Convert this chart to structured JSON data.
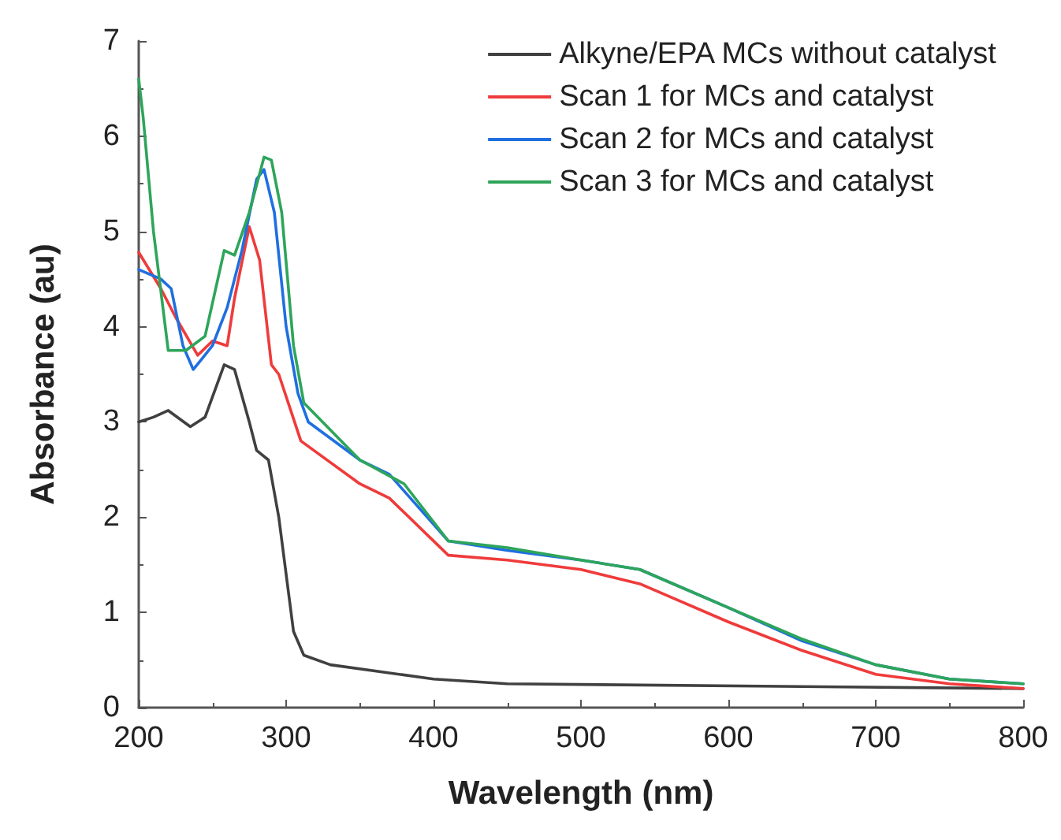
{
  "chart_data": {
    "type": "line",
    "xlabel": "Wavelength (nm)",
    "ylabel": "Absorbance (au)",
    "xlim": [
      200,
      800
    ],
    "xticks": [
      200,
      300,
      400,
      500,
      600,
      700,
      800
    ],
    "ylim": [
      0,
      7
    ],
    "yticks": [
      0,
      1,
      2,
      3,
      4,
      5,
      6,
      7
    ],
    "legend": "top right",
    "grid": false,
    "marker": "none",
    "line_style": "solid",
    "series": [
      {
        "name": "Alkyne/EPA MCs without catalyst",
        "color": "#404040",
        "x": [
          200,
          210,
          220,
          235,
          245,
          258,
          265,
          275,
          280,
          288,
          295,
          305,
          312,
          330,
          400,
          450,
          800
        ],
        "values": [
          3.0,
          3.05,
          3.12,
          2.95,
          3.05,
          3.6,
          3.55,
          3.0,
          2.7,
          2.6,
          2.0,
          0.8,
          0.55,
          0.45,
          0.3,
          0.25,
          0.2
        ]
      },
      {
        "name": "Scan 1 for MCs and catalyst",
        "color": "#ef3b3b",
        "x": [
          200,
          215,
          225,
          240,
          250,
          260,
          265,
          275,
          282,
          290,
          295,
          310,
          350,
          370,
          410,
          450,
          500,
          540,
          600,
          650,
          700,
          750,
          800
        ],
        "values": [
          4.78,
          4.4,
          4.1,
          3.7,
          3.85,
          3.8,
          4.3,
          5.05,
          4.7,
          3.6,
          3.5,
          2.8,
          2.35,
          2.2,
          1.6,
          1.55,
          1.45,
          1.3,
          0.9,
          0.6,
          0.35,
          0.25,
          0.2
        ]
      },
      {
        "name": "Scan 2 for MCs and catalyst",
        "color": "#1f6fe0",
        "x": [
          200,
          215,
          222,
          230,
          237,
          250,
          260,
          270,
          280,
          285,
          292,
          300,
          308,
          315,
          350,
          370,
          410,
          450,
          500,
          540,
          600,
          650,
          700,
          750,
          800
        ],
        "values": [
          4.6,
          4.5,
          4.4,
          3.8,
          3.55,
          3.8,
          4.2,
          4.8,
          5.55,
          5.65,
          5.2,
          4.0,
          3.3,
          3.0,
          2.6,
          2.45,
          1.75,
          1.65,
          1.55,
          1.45,
          1.05,
          0.7,
          0.45,
          0.3,
          0.25
        ]
      },
      {
        "name": "Scan 3 for MCs and catalyst",
        "color": "#2ea55a",
        "x": [
          200,
          203,
          210,
          220,
          232,
          245,
          258,
          265,
          275,
          285,
          290,
          297,
          305,
          312,
          350,
          380,
          410,
          450,
          500,
          540,
          600,
          650,
          700,
          750,
          800
        ],
        "values": [
          6.6,
          6.2,
          5.0,
          3.75,
          3.75,
          3.9,
          4.8,
          4.75,
          5.2,
          5.78,
          5.75,
          5.2,
          3.8,
          3.2,
          2.6,
          2.35,
          1.75,
          1.68,
          1.55,
          1.45,
          1.05,
          0.72,
          0.45,
          0.3,
          0.25
        ]
      }
    ]
  }
}
